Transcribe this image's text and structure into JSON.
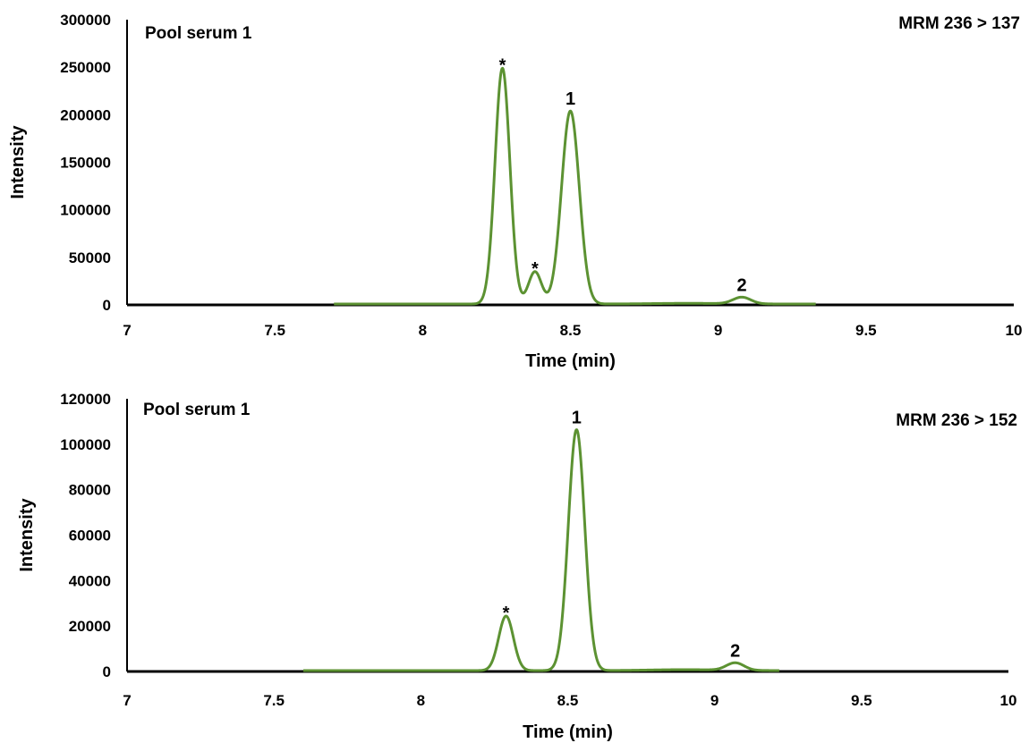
{
  "chart_data": [
    {
      "type": "line",
      "label": "Pool serum 1",
      "transition": "MRM 236 > 137",
      "xlabel": "Time (min)",
      "ylabel": "Intensity",
      "xlim": [
        7,
        10
      ],
      "ylim": [
        0,
        300000
      ],
      "x_ticks": [
        "7",
        "7.5",
        "8",
        "8.5",
        "9",
        "9.5",
        "10"
      ],
      "y_ticks": [
        "0",
        "50000",
        "100000",
        "150000",
        "200000",
        "250000",
        "300000"
      ],
      "trace_range": [
        7.7,
        9.33
      ],
      "baseline": 0,
      "peaks": [
        {
          "x": 8.27,
          "height": 248000,
          "sigma": 0.025
        },
        {
          "x": 8.38,
          "height": 34000,
          "sigma": 0.022
        },
        {
          "x": 8.5,
          "height": 203000,
          "sigma": 0.03
        },
        {
          "x": 8.9,
          "height": 700,
          "sigma": 0.12
        },
        {
          "x": 9.08,
          "height": 7000,
          "sigma": 0.03
        }
      ],
      "annotations": [
        {
          "text": "*",
          "x": 8.27,
          "y": 248000
        },
        {
          "text": "*",
          "x": 8.38,
          "y": 34000
        },
        {
          "text": "1",
          "x": 8.5,
          "y": 203000
        },
        {
          "text": "2",
          "x": 9.08,
          "y": 7000
        }
      ],
      "color": "#5c9232"
    },
    {
      "type": "line",
      "label": "Pool serum 1",
      "transition": "MRM 236 > 152",
      "xlabel": "Time (min)",
      "ylabel": "Intensity",
      "xlim": [
        7,
        10
      ],
      "ylim": [
        0,
        120000
      ],
      "x_ticks": [
        "7",
        "7.5",
        "8",
        "8.5",
        "9",
        "9.5",
        "10"
      ],
      "y_ticks": [
        "0",
        "20000",
        "40000",
        "60000",
        "80000",
        "100000",
        "120000"
      ],
      "trace_range": [
        7.6,
        9.22
      ],
      "baseline": 0,
      "peaks": [
        {
          "x": 8.29,
          "height": 24000,
          "sigma": 0.025
        },
        {
          "x": 8.53,
          "height": 106000,
          "sigma": 0.028
        },
        {
          "x": 8.9,
          "height": 400,
          "sigma": 0.12
        },
        {
          "x": 9.07,
          "height": 3300,
          "sigma": 0.03
        }
      ],
      "annotations": [
        {
          "text": "*",
          "x": 8.29,
          "y": 24000
        },
        {
          "text": "1",
          "x": 8.53,
          "y": 106000
        },
        {
          "text": "2",
          "x": 9.07,
          "y": 3300
        }
      ],
      "color": "#5c9232"
    }
  ]
}
